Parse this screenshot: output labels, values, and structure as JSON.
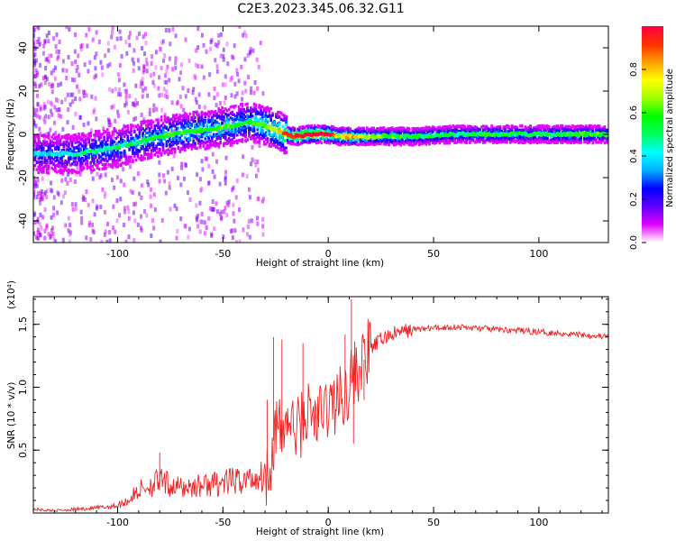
{
  "title": "C2E3.2023.345.06.32.G11",
  "colorbar": {
    "label": "Normalized spectral amplitude",
    "ticks": [
      "0.0",
      "0.2",
      "0.4",
      "0.6",
      "0.8"
    ],
    "tick_values": [
      0.0,
      0.2,
      0.4,
      0.6,
      0.8
    ],
    "range": [
      0,
      1
    ],
    "colormap": [
      "#ffffff",
      "#e000ff",
      "#6000ff",
      "#0000ff",
      "#00b0ff",
      "#00ffff",
      "#00ff60",
      "#00ff00",
      "#a0ff00",
      "#ffff00",
      "#ffa000",
      "#ff3000",
      "#ff0040"
    ]
  },
  "chart_data": [
    {
      "type": "heatmap",
      "title": "",
      "xlabel": "Height of straight line (km)",
      "ylabel": "Frequency (Hz)",
      "xlim": [
        -140,
        133
      ],
      "ylim": [
        -50,
        50
      ],
      "xticks": [
        -100,
        -50,
        0,
        50,
        100
      ],
      "xtick_labels": [
        "-100",
        "-50",
        "0",
        "50",
        "100"
      ],
      "yticks": [
        -40,
        -20,
        0,
        20,
        40
      ],
      "ytick_labels": [
        "-40",
        "-20",
        "0",
        "20",
        "40"
      ],
      "ridge": {
        "name": "",
        "x": [
          -140,
          -120,
          -100,
          -80,
          -60,
          -45,
          -38,
          -32,
          -25,
          -20,
          -15,
          -10,
          -5,
          0,
          5,
          10,
          20,
          40,
          60,
          80,
          100,
          120,
          133
        ],
        "frequency": [
          -9,
          -9,
          -6,
          -1,
          2,
          4,
          6,
          5,
          2,
          0,
          -1,
          0,
          0,
          0,
          -1,
          -1,
          -1,
          -1,
          0,
          0,
          0,
          0,
          0
        ],
        "amplitude": [
          0.3,
          0.35,
          0.4,
          0.45,
          0.5,
          0.5,
          0.45,
          0.55,
          0.6,
          0.8,
          0.85,
          0.95,
          0.95,
          0.9,
          0.6,
          0.75,
          0.55,
          0.45,
          0.4,
          0.45,
          0.4,
          0.5,
          0.45
        ]
      }
    },
    {
      "type": "line",
      "title": "",
      "xlabel": "Height of straight line (km)",
      "ylabel": "SNR (10 * v/v)",
      "y_multiplier_label": "(x10⁴)",
      "xlim": [
        -140,
        133
      ],
      "ylim": [
        0,
        1.72
      ],
      "xticks": [
        -100,
        -50,
        0,
        50,
        100
      ],
      "xtick_labels": [
        "-100",
        "-50",
        "0",
        "50",
        "100"
      ],
      "yticks": [
        0.5,
        1.0,
        1.5
      ],
      "ytick_labels": [
        "0.5",
        "1.0",
        "1.5"
      ],
      "series": [
        {
          "name": "",
          "color": "#ee2222",
          "x": [
            -140,
            -130,
            -120,
            -110,
            -100,
            -95,
            -90,
            -85,
            -80,
            -75,
            -70,
            -60,
            -50,
            -40,
            -35,
            -30,
            -27,
            -25,
            -22,
            -20,
            -15,
            -10,
            -5,
            0,
            5,
            8,
            10,
            12,
            15,
            18,
            20,
            25,
            30,
            35,
            40,
            50,
            60,
            70,
            80,
            90,
            100,
            110,
            120,
            133
          ],
          "y": [
            0.03,
            0.02,
            0.03,
            0.04,
            0.06,
            0.1,
            0.18,
            0.22,
            0.25,
            0.22,
            0.2,
            0.22,
            0.24,
            0.26,
            0.28,
            0.3,
            0.45,
            0.7,
            0.6,
            0.75,
            0.65,
            0.8,
            0.75,
            0.85,
            0.9,
            0.95,
            1.05,
            1.1,
            1.15,
            1.25,
            1.3,
            1.38,
            1.42,
            1.44,
            1.46,
            1.47,
            1.48,
            1.47,
            1.46,
            1.45,
            1.44,
            1.43,
            1.42,
            1.4
          ],
          "spikes": [
            {
              "x": -80,
              "y": 0.48
            },
            {
              "x": -29,
              "y": 0.9
            },
            {
              "x": -26,
              "y": 1.4
            },
            {
              "x": -22,
              "y": 1.38
            },
            {
              "x": -12,
              "y": 1.35
            },
            {
              "x": 8,
              "y": 1.42
            },
            {
              "x": 11,
              "y": 1.7
            },
            {
              "x": 12,
              "y": 0.55
            },
            {
              "x": 17,
              "y": 0.9
            }
          ]
        }
      ]
    }
  ]
}
